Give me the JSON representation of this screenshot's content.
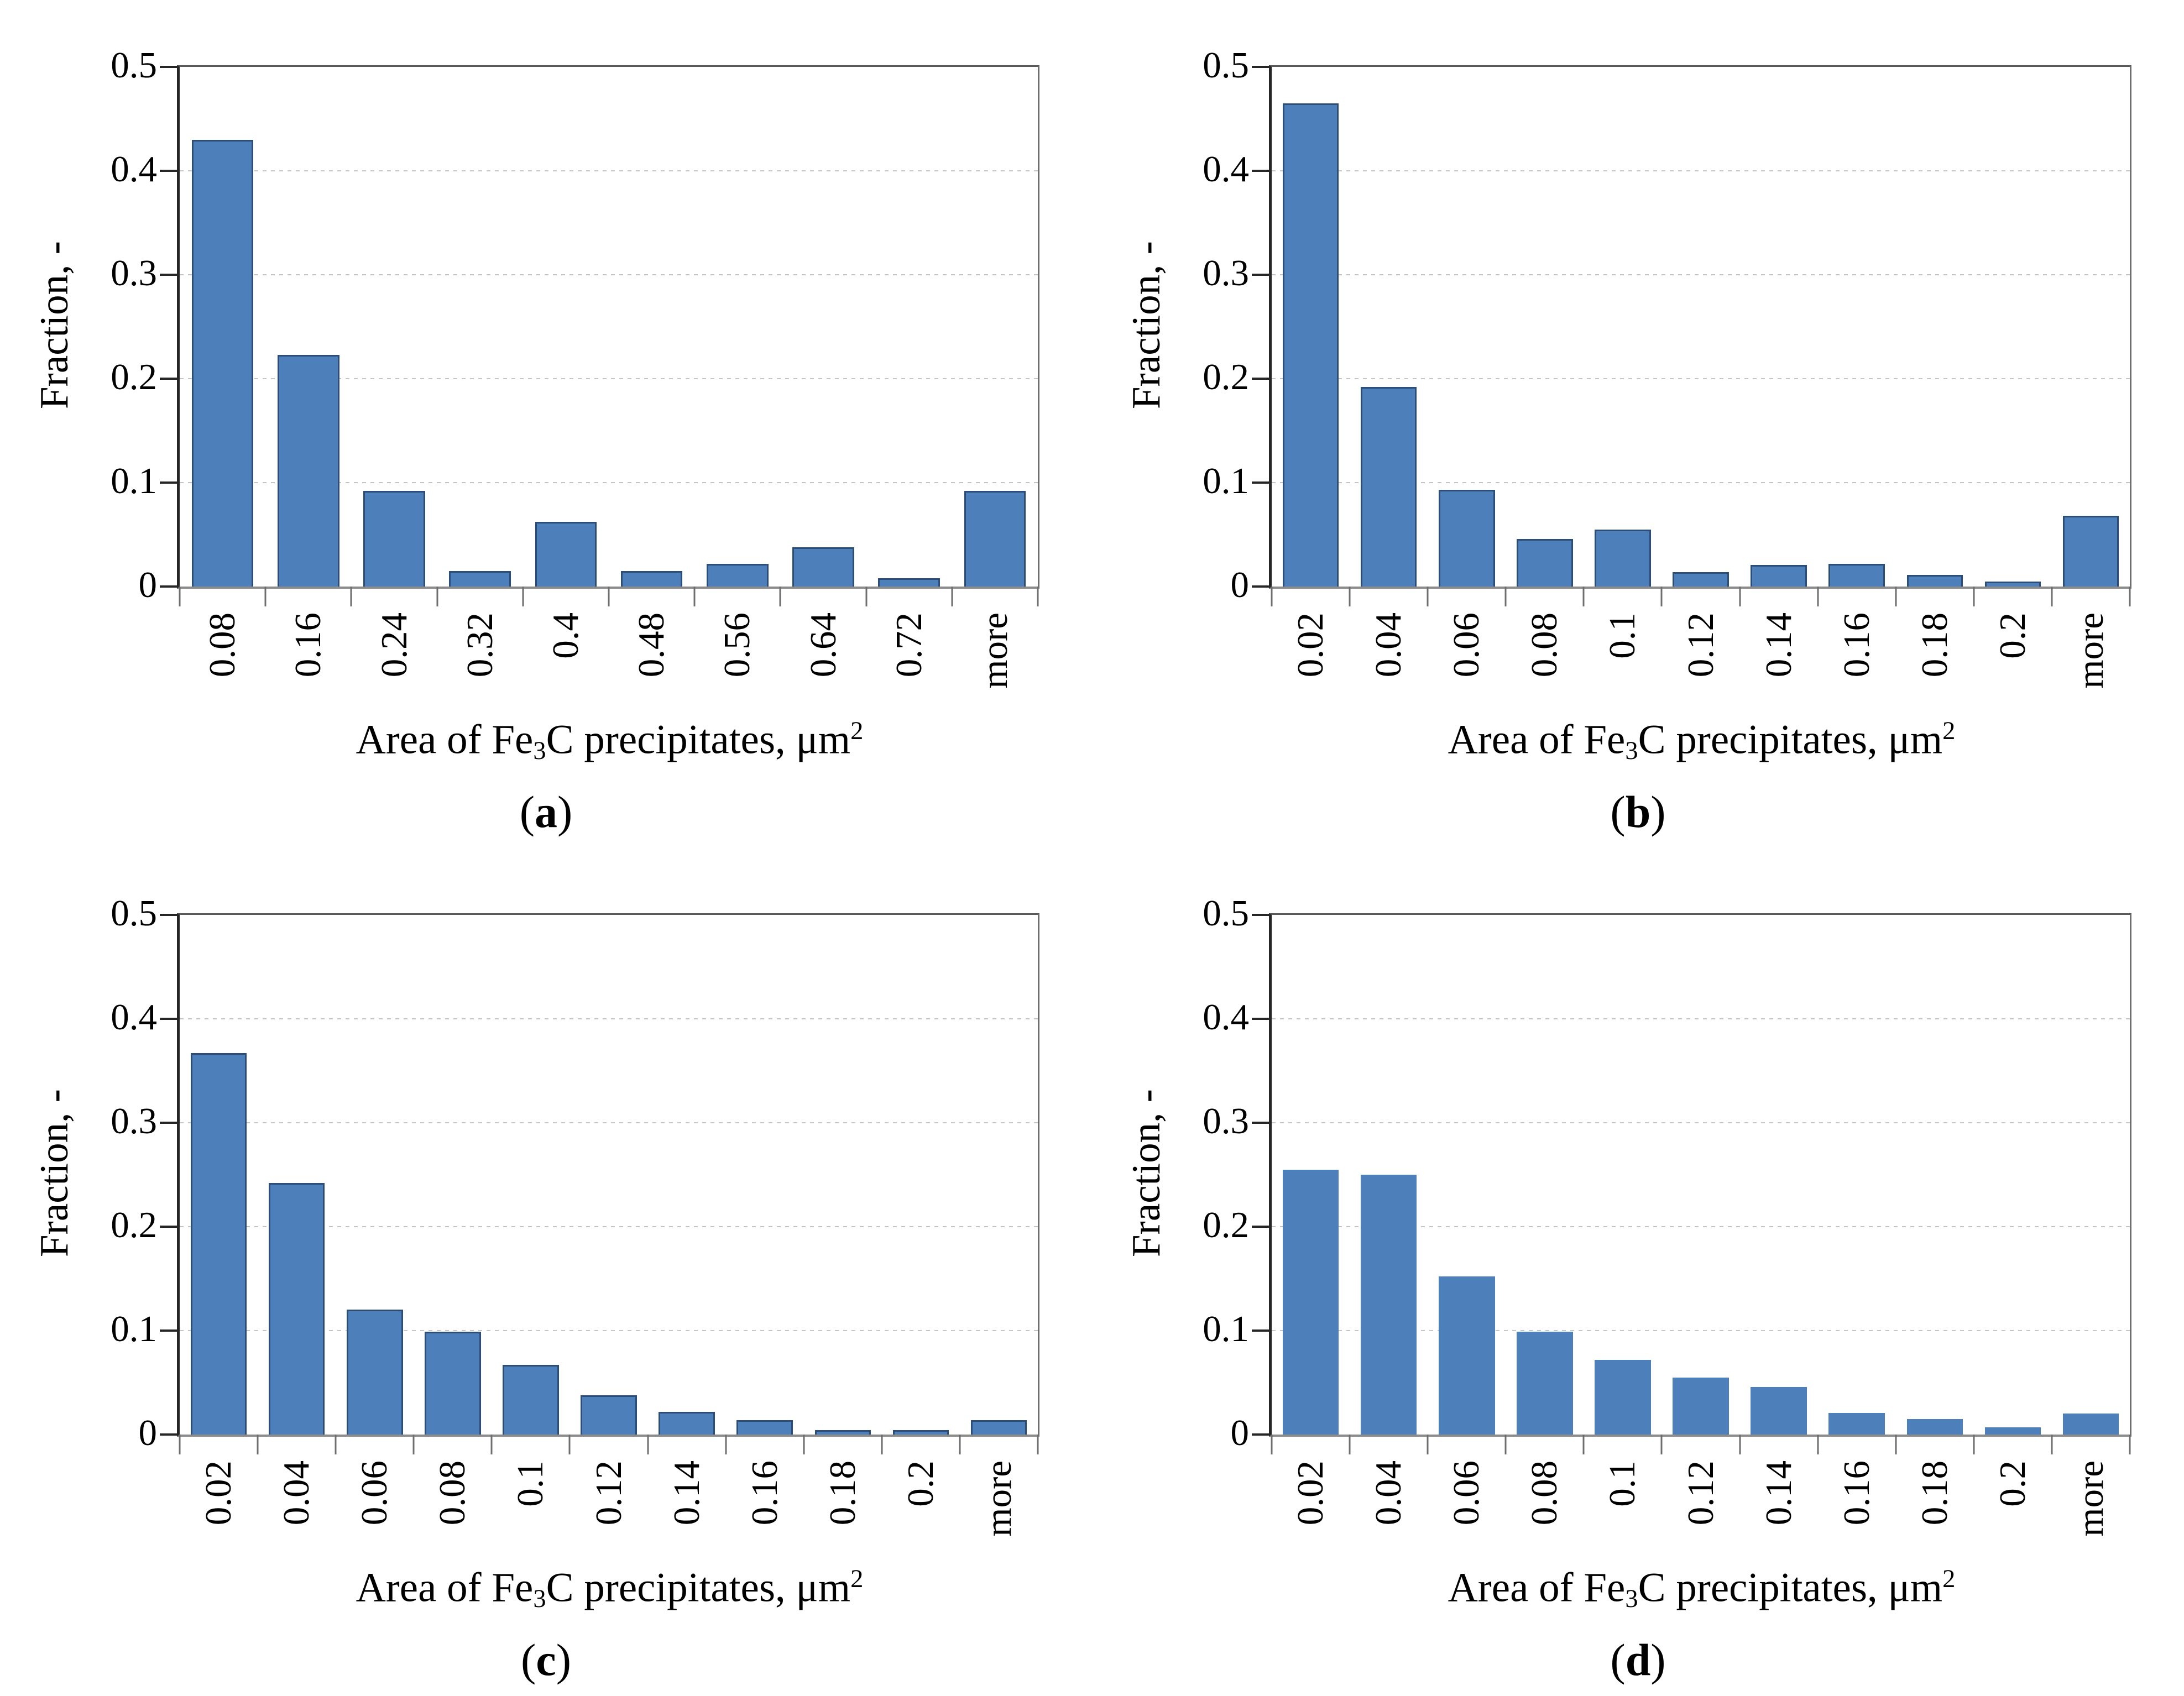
{
  "figure": {
    "y_axis_title": "Fraction, -",
    "y_tick_labels": [
      "0.5",
      "0.4",
      "0.3",
      "0.2",
      "0.1",
      "0"
    ],
    "x_axis_title": {
      "pre": "Area of  Fe",
      "sub": "3",
      "mid": "C precipitates, ",
      "unit": "μm",
      "sup": "2"
    },
    "caption_open": "(",
    "caption_close": ")",
    "colors": {
      "bar_fill": "#4d7fba",
      "bar_border": "#2c4d75",
      "gridline": "#c4c4c4",
      "axis_left": "#262626",
      "axis_bottom": "#8c8c8c",
      "frame": "#595959"
    }
  },
  "chart_data": [
    {
      "type": "bar",
      "caption_letter": "a",
      "ylabel": "Fraction, -",
      "xlabel": "Area of Fe3C precipitates, μm2",
      "ylim": [
        0,
        0.5
      ],
      "y_ticks": [
        0,
        0.1,
        0.2,
        0.3,
        0.4,
        0.5
      ],
      "grid": true,
      "legend": false,
      "bar_borders": true,
      "categories": [
        "0.08",
        "0.16",
        "0.24",
        "0.32",
        "0.4",
        "0.48",
        "0.56",
        "0.64",
        "0.72",
        "more"
      ],
      "values": [
        0.43,
        0.223,
        0.092,
        0.015,
        0.062,
        0.015,
        0.022,
        0.038,
        0.008,
        0.092
      ]
    },
    {
      "type": "bar",
      "caption_letter": "b",
      "ylabel": "Fraction, -",
      "xlabel": "Area of Fe3C precipitates, μm2",
      "ylim": [
        0,
        0.5
      ],
      "y_ticks": [
        0,
        0.1,
        0.2,
        0.3,
        0.4,
        0.5
      ],
      "grid": true,
      "legend": false,
      "bar_borders": true,
      "categories": [
        "0.02",
        "0.04",
        "0.06",
        "0.08",
        "0.1",
        "0.12",
        "0.14",
        "0.16",
        "0.18",
        "0.2",
        "more"
      ],
      "values": [
        0.465,
        0.192,
        0.093,
        0.046,
        0.055,
        0.014,
        0.021,
        0.022,
        0.011,
        0.005,
        0.068
      ]
    },
    {
      "type": "bar",
      "caption_letter": "c",
      "ylabel": "Fraction, -",
      "xlabel": "Area of Fe3C precipitates, μm2",
      "ylim": [
        0,
        0.5
      ],
      "y_ticks": [
        0,
        0.1,
        0.2,
        0.3,
        0.4,
        0.5
      ],
      "grid": true,
      "legend": false,
      "bar_borders": true,
      "categories": [
        "0.02",
        "0.04",
        "0.06",
        "0.08",
        "0.1",
        "0.12",
        "0.14",
        "0.16",
        "0.18",
        "0.2",
        "more"
      ],
      "values": [
        0.367,
        0.242,
        0.12,
        0.099,
        0.067,
        0.038,
        0.022,
        0.014,
        0.004,
        0.004,
        0.014
      ]
    },
    {
      "type": "bar",
      "caption_letter": "d",
      "ylabel": "Fraction, -",
      "xlabel": "Area of Fe3C precipitates, μm2",
      "ylim": [
        0,
        0.5
      ],
      "y_ticks": [
        0,
        0.1,
        0.2,
        0.3,
        0.4,
        0.5
      ],
      "grid": true,
      "legend": false,
      "bar_borders": false,
      "categories": [
        "0.02",
        "0.04",
        "0.06",
        "0.08",
        "0.1",
        "0.12",
        "0.14",
        "0.16",
        "0.18",
        "0.2",
        "more"
      ],
      "values": [
        0.255,
        0.25,
        0.152,
        0.099,
        0.072,
        0.055,
        0.046,
        0.021,
        0.015,
        0.007,
        0.02
      ]
    }
  ]
}
